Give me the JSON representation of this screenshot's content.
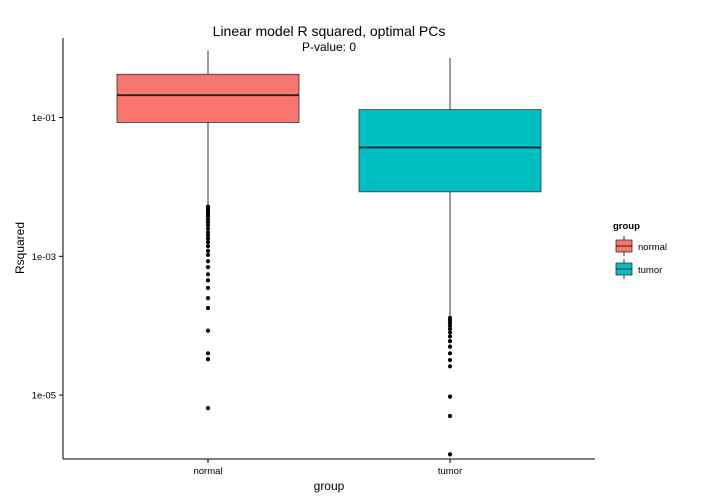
{
  "chart_data": {
    "type": "boxplot",
    "title": "Linear model R squared, optimal PCs",
    "subtitle": "P-value: 0",
    "xlabel": "group",
    "ylabel": "Rsquared",
    "y_scale": "log10",
    "ylim": [
      1.2e-06,
      1.4
    ],
    "y_ticks": [
      {
        "value": 0.1,
        "label": "1e-01"
      },
      {
        "value": 0.001,
        "label": "1e-03"
      },
      {
        "value": 1e-05,
        "label": "1e-05"
      }
    ],
    "grid": false,
    "legend": {
      "title": "group",
      "position": "right"
    },
    "categories": [
      "normal",
      "tumor"
    ],
    "series": [
      {
        "name": "normal",
        "color": "#F8766D",
        "whisker_low": 0.0055,
        "q1": 0.085,
        "median": 0.21,
        "q3": 0.42,
        "whisker_high": 0.93,
        "outliers": [
          0.0052,
          0.0049,
          0.0046,
          0.0043,
          0.004,
          0.0037,
          0.0034,
          0.0031,
          0.0028,
          0.0025,
          0.0022,
          0.002,
          0.0018,
          0.0016,
          0.0014,
          0.0012,
          0.00105,
          0.00085,
          0.0007,
          0.00055,
          0.00045,
          0.00035,
          0.00025,
          0.00018,
          8.5e-05,
          4e-05,
          3.3e-05,
          6.5e-06
        ]
      },
      {
        "name": "tumor",
        "color": "#00BFC4",
        "whisker_low": 0.00014,
        "q1": 0.0085,
        "median": 0.037,
        "q3": 0.13,
        "whisker_high": 0.72,
        "outliers": [
          0.00013,
          0.00012,
          0.00011,
          0.0001,
          9e-05,
          8e-05,
          7e-05,
          6e-05,
          5e-05,
          4e-05,
          3.2e-05,
          2.6e-05,
          9.5e-06,
          5e-06,
          1.4e-06
        ]
      }
    ]
  }
}
